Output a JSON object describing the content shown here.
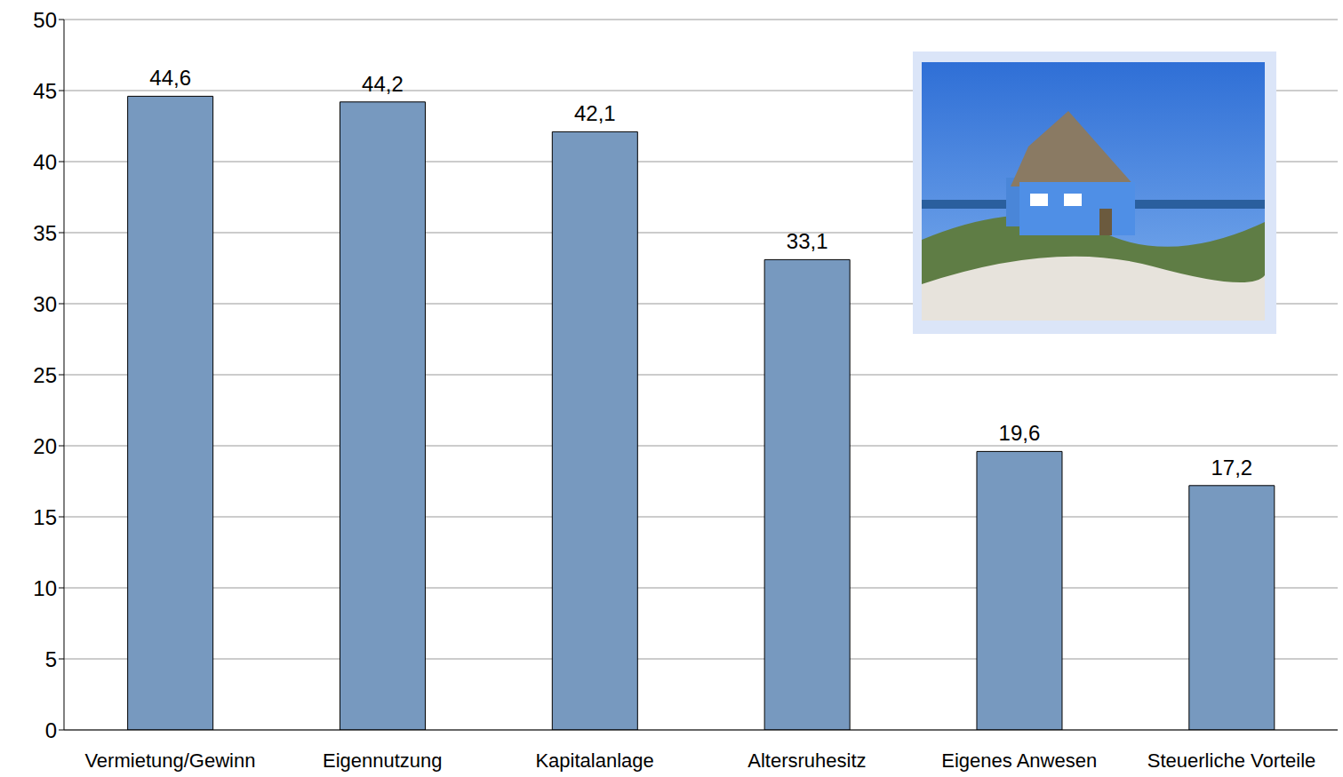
{
  "chart_data": {
    "type": "bar",
    "categories": [
      "Vermietung/Gewinn",
      "Eigennutzung",
      "Kapitalanlage",
      "Altersruhesitz",
      "Eigenes Anwesen",
      "Steuerliche Vorteile"
    ],
    "values": [
      44.6,
      44.2,
      42.1,
      33.1,
      19.6,
      17.2
    ],
    "value_labels": [
      "44,6",
      "44,2",
      "42,1",
      "33,1",
      "19,6",
      "17,2"
    ],
    "data_labels": true,
    "color": "#7799bf",
    "ylim": [
      0,
      50
    ],
    "yticks": [
      0,
      5,
      10,
      15,
      20,
      25,
      30,
      35,
      40,
      45,
      50
    ],
    "grid": true
  }
}
